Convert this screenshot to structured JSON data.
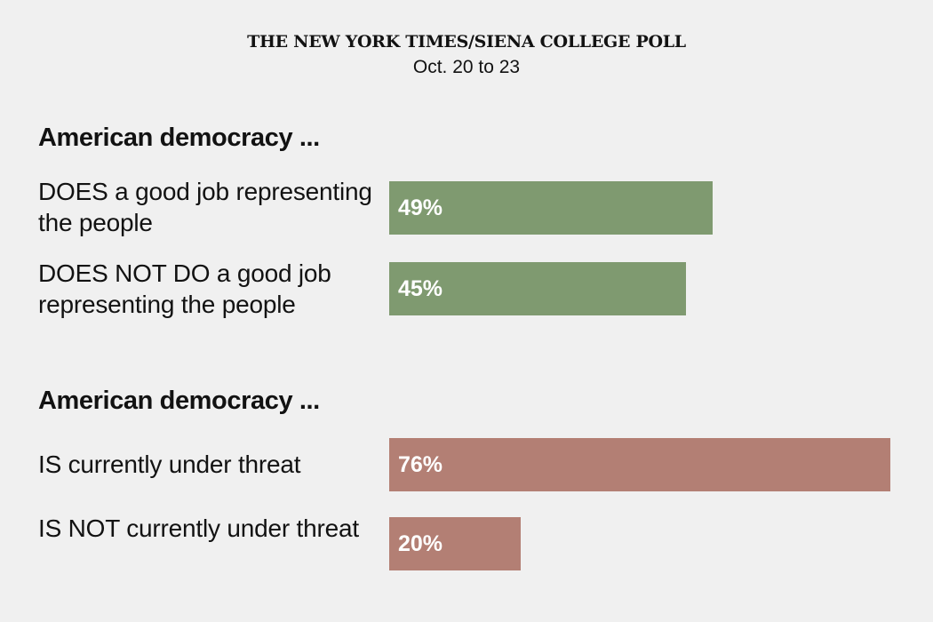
{
  "header": {
    "title": "THE NEW YORK TIMES/SIENA COLLEGE POLL",
    "subtitle": "Oct. 20 to 23"
  },
  "chart_data": [
    {
      "type": "bar",
      "orientation": "horizontal",
      "group_label": "American democracy ...",
      "bar_color": "#7f9a70",
      "categories": [
        "DOES a good job representing the people",
        "DOES NOT DO a good job representing the people"
      ],
      "values": [
        49,
        45
      ],
      "value_labels": [
        "49%",
        "45%"
      ]
    },
    {
      "type": "bar",
      "orientation": "horizontal",
      "group_label": "American democracy ...",
      "bar_color": "#b37f74",
      "categories": [
        "IS currently under threat",
        "IS NOT currently under threat"
      ],
      "values": [
        76,
        20
      ],
      "value_labels": [
        "76%",
        "20%"
      ]
    }
  ]
}
